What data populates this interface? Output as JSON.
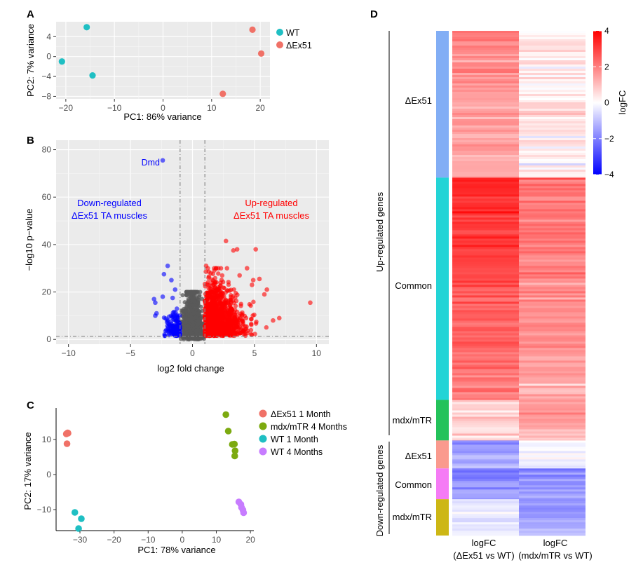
{
  "colors": {
    "wt": "#1fbfc3",
    "dex51": "#f07167",
    "mdx": "#7caa10",
    "wt4": "#c77cff",
    "up": "#ff0000",
    "down": "#0000ff",
    "ns": "#595959",
    "panel_bg": "#ebebeb"
  },
  "panels": {
    "A": {
      "label": "A",
      "chart_data": {
        "type": "scatter",
        "xlabel": "PC1: 86% variance",
        "ylabel": "PC2: 7% variance",
        "xlim": [
          -22,
          22
        ],
        "ylim": [
          -8.5,
          7
        ],
        "xticks": [
          -20,
          -10,
          0,
          10,
          20
        ],
        "yticks": [
          -8,
          -4,
          0,
          4
        ],
        "xtick_labels": [
          "−20",
          "−10",
          "0",
          "10",
          "20"
        ],
        "ytick_labels": [
          "−8",
          "−4",
          "0",
          "4"
        ],
        "legend": "right",
        "series": [
          {
            "name": "WT",
            "color_key": "wt",
            "points": [
              [
                -15.7,
                5.9
              ],
              [
                -20.8,
                -1.0
              ],
              [
                -14.5,
                -3.8
              ]
            ]
          },
          {
            "name": "ΔEx51",
            "color_key": "dex51",
            "points": [
              [
                18.4,
                5.4
              ],
              [
                20.2,
                0.6
              ],
              [
                12.3,
                -7.5
              ]
            ]
          }
        ]
      }
    },
    "B": {
      "label": "B",
      "chart_data": {
        "type": "scatter",
        "subtype": "volcano",
        "xlabel": "log2 fold change",
        "ylabel": "−log10 p−value",
        "xlim": [
          -11,
          11
        ],
        "ylim": [
          -2,
          84
        ],
        "xticks": [
          -10,
          -5,
          0,
          5,
          10
        ],
        "yticks": [
          0,
          20,
          40,
          60,
          80
        ],
        "xtick_labels": [
          "−10",
          "−5",
          "0",
          "5",
          "10"
        ],
        "ytick_labels": [
          "0",
          "20",
          "40",
          "60",
          "80"
        ],
        "thresholds": {
          "logfc": [
            -1,
            1
          ],
          "pvalue_line": 1.3
        },
        "annotations": [
          {
            "text": "Dmd",
            "x": -2.6,
            "y": 75.5,
            "color_key": "down"
          },
          {
            "text": "Down-regulated",
            "color_key": "down"
          },
          {
            "text": "ΔEx51 TA muscles",
            "color_key": "down"
          },
          {
            "text": "Up-regulated",
            "color_key": "up"
          },
          {
            "text": "ΔEx51 TA muscles",
            "color_key": "up"
          }
        ],
        "highlight_points": [
          [
            -2.4,
            75.5
          ],
          [
            -2.0,
            31
          ],
          [
            -2.3,
            27.5
          ],
          [
            -1.7,
            25
          ],
          [
            -1.4,
            21
          ],
          [
            -3.1,
            17
          ],
          [
            -3.0,
            15.5
          ],
          [
            -2.9,
            11
          ],
          [
            -3.0,
            10
          ],
          [
            -2.4,
            18
          ],
          [
            -1.6,
            17.5
          ],
          [
            2.7,
            41.5
          ],
          [
            3.3,
            37.5
          ],
          [
            3.6,
            38
          ],
          [
            5.1,
            38
          ],
          [
            9.5,
            15.5
          ],
          [
            7.0,
            9
          ],
          [
            6.5,
            8
          ],
          [
            5.8,
            19
          ],
          [
            4.8,
            23
          ],
          [
            1.1,
            31
          ],
          [
            1.3,
            26
          ],
          [
            4.9,
            25
          ],
          [
            5.4,
            25.5
          ],
          [
            6.0,
            21
          ],
          [
            4.4,
            30
          ],
          [
            3.8,
            27
          ]
        ]
      }
    },
    "C": {
      "label": "C",
      "chart_data": {
        "type": "scatter",
        "xlabel": "PC1: 78% variance",
        "ylabel": "PC2: 17% variance",
        "xlim": [
          -37,
          21
        ],
        "ylim": [
          -16,
          19
        ],
        "xticks": [
          -30,
          -20,
          -10,
          0,
          10,
          20
        ],
        "yticks": [
          -10,
          0,
          10
        ],
        "xtick_labels": [
          "−30",
          "−20",
          "−10",
          "0",
          "10",
          "20"
        ],
        "ytick_labels": [
          "−10",
          "0",
          "10"
        ],
        "legend": "right",
        "series": [
          {
            "name": "ΔEx51 1 Month",
            "color_key": "dex51",
            "points": [
              [
                -34,
                11.6
              ],
              [
                -33.6,
                11.9
              ],
              [
                -33.8,
                8.8
              ],
              [
                -33.5,
                11.8
              ]
            ]
          },
          {
            "name": "mdx/mTR 4 Months",
            "color_key": "mdx",
            "points": [
              [
                12.8,
                17.1
              ],
              [
                13.5,
                12.4
              ],
              [
                14.7,
                8.6
              ],
              [
                15.3,
                8.7
              ],
              [
                15.5,
                6.8
              ],
              [
                15.4,
                5.3
              ]
            ]
          },
          {
            "name": "WT 1 Month",
            "color_key": "wt",
            "points": [
              [
                -31.5,
                -10.8
              ],
              [
                -29.6,
                -12.6
              ],
              [
                -30.4,
                -15.4
              ]
            ]
          },
          {
            "name": "WT 4 Months",
            "color_key": "wt4",
            "points": [
              [
                16.6,
                -7.8
              ],
              [
                17.2,
                -8.5
              ],
              [
                17.4,
                -9.4
              ],
              [
                17.8,
                -10.1
              ],
              [
                18.0,
                -10.9
              ]
            ]
          }
        ]
      }
    },
    "D": {
      "label": "D",
      "chart_data": {
        "type": "heatmap",
        "columns": [
          "logFC\n(ΔEx51 vs WT)",
          "logFC\n(mdx/mTR vs WT)"
        ],
        "column_labels_line1": [
          "logFC",
          "logFC"
        ],
        "column_labels_line2": [
          "(ΔEx51 vs WT)",
          "(mdx/mTR vs WT)"
        ],
        "color_scale": {
          "min": -4,
          "max": 4,
          "low": "#0000ff",
          "mid": "#ffffff",
          "high": "#ff0000",
          "title": "logFC",
          "ticks": [
            4,
            2,
            0,
            -2,
            -4
          ],
          "tick_labels": [
            "4",
            "2",
            "0",
            "−2",
            "−4"
          ]
        },
        "groups": [
          {
            "name": "Up-regulated genes",
            "clusters": [
              {
                "name": "ΔEx51",
                "color": "#82aef5",
                "rows": 210,
                "mean_logfc": [
                  1.6,
                  0.3
                ]
              },
              {
                "name": "Common",
                "color": "#23d4d6",
                "rows": 318,
                "mean_logfc": [
                  2.7,
                  1.8
                ]
              },
              {
                "name": "mdx/mTR",
                "color": "#24c25a",
                "rows": 58,
                "mean_logfc": [
                  0.6,
                  1.4
                ]
              }
            ]
          },
          {
            "name": "Down-regulated genes",
            "clusters": [
              {
                "name": "ΔEx51",
                "color": "#fa9a8e",
                "rows": 40,
                "mean_logfc": [
                  -1.4,
                  -0.2
                ]
              },
              {
                "name": "Common",
                "color": "#f57bf5",
                "rows": 44,
                "mean_logfc": [
                  -1.7,
                  -1.6
                ]
              },
              {
                "name": "mdx/mTR",
                "color": "#cdb715",
                "rows": 52,
                "mean_logfc": [
                  -0.3,
                  -1.5
                ]
              }
            ]
          }
        ]
      }
    }
  }
}
